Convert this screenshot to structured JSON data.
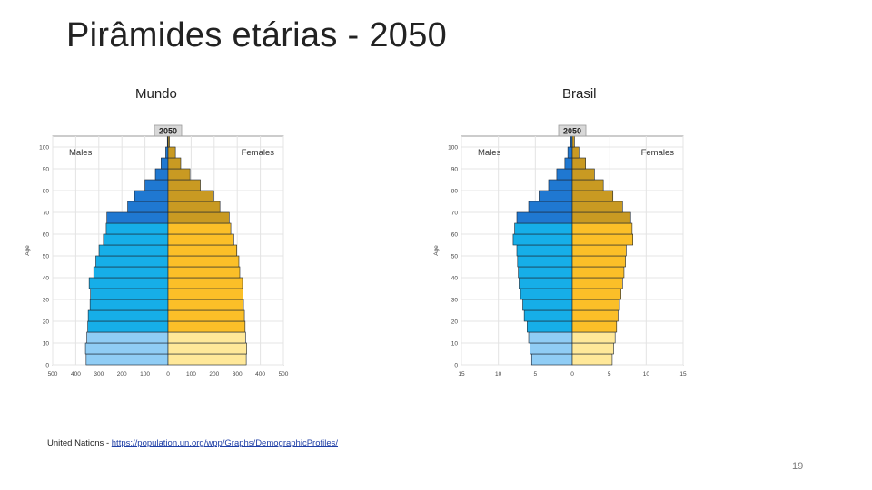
{
  "slide": {
    "title": "Pirâmides etárias - 2050",
    "source_prefix": "United Nations - ",
    "source_link": "https://population.un.org/wpp/Graphs/DemographicProfiles/",
    "page_number": "19"
  },
  "colors": {
    "male_dark": "#1f78d1",
    "male_mid": "#16aee8",
    "male_light": "#90cdf5",
    "female_dark": "#c99a22",
    "female_mid": "#fbbf28",
    "female_light": "#ffe899",
    "frame_bg": "#ffffff",
    "grid": "#e4e4e4"
  },
  "chart_data": [
    {
      "type": "bar",
      "panel_label": "Mundo",
      "title": "2050",
      "ylabel": "Age",
      "male_label": "Males",
      "female_label": "Females",
      "age_groups": [
        "0-4",
        "5-9",
        "10-14",
        "15-19",
        "20-24",
        "25-29",
        "30-34",
        "35-39",
        "40-44",
        "45-49",
        "50-54",
        "55-59",
        "60-64",
        "65-69",
        "70-74",
        "75-79",
        "80-84",
        "85-89",
        "90-94",
        "95-99",
        "100+"
      ],
      "y_ticks": [
        "0",
        "10",
        "20",
        "30",
        "40",
        "50",
        "60",
        "70",
        "80",
        "90",
        "100"
      ],
      "x_ticks": [
        "500",
        "400",
        "300",
        "200",
        "100",
        "0",
        "100",
        "200",
        "300",
        "400",
        "500"
      ],
      "xlim": [
        -500,
        500
      ],
      "x_unit": "thousands",
      "series": [
        {
          "name": "Males",
          "values": [
            -355,
            -358,
            -352,
            -348,
            -346,
            -338,
            -336,
            -342,
            -322,
            -313,
            -299,
            -280,
            -268,
            -265,
            -175,
            -145,
            -100,
            -55,
            -30,
            -10,
            -3
          ]
        },
        {
          "name": "Females",
          "values": [
            339,
            341,
            336,
            334,
            331,
            327,
            325,
            323,
            311,
            307,
            298,
            285,
            272,
            265,
            225,
            198,
            140,
            95,
            55,
            32,
            6
          ]
        }
      ]
    },
    {
      "type": "bar",
      "panel_label": "Brasil",
      "title": "2050",
      "ylabel": "Age",
      "male_label": "Males",
      "female_label": "Females",
      "age_groups": [
        "0-4",
        "5-9",
        "10-14",
        "15-19",
        "20-24",
        "25-29",
        "30-34",
        "35-39",
        "40-44",
        "45-49",
        "50-54",
        "55-59",
        "60-64",
        "65-69",
        "70-74",
        "75-79",
        "80-84",
        "85-89",
        "90-94",
        "95-99",
        "100+"
      ],
      "y_ticks": [
        "0",
        "10",
        "20",
        "30",
        "40",
        "50",
        "60",
        "70",
        "80",
        "90",
        "100"
      ],
      "x_ticks": [
        "15",
        "10",
        "5",
        "0",
        "5",
        "10",
        "15"
      ],
      "xlim": [
        -15,
        15
      ],
      "x_unit": "percent",
      "series": [
        {
          "name": "Males",
          "values": [
            -5.5,
            -5.7,
            -5.9,
            -6.1,
            -6.5,
            -6.7,
            -7.0,
            -7.2,
            -7.3,
            -7.4,
            -7.5,
            -8.0,
            -7.8,
            -7.5,
            -5.9,
            -4.5,
            -3.2,
            -2.1,
            -1.0,
            -0.6,
            -0.2
          ]
        },
        {
          "name": "Females",
          "values": [
            5.4,
            5.6,
            5.8,
            6.0,
            6.2,
            6.4,
            6.6,
            6.8,
            7.0,
            7.2,
            7.3,
            8.2,
            8.1,
            7.9,
            6.8,
            5.5,
            4.2,
            3.0,
            1.8,
            0.9,
            0.3
          ]
        }
      ]
    }
  ]
}
